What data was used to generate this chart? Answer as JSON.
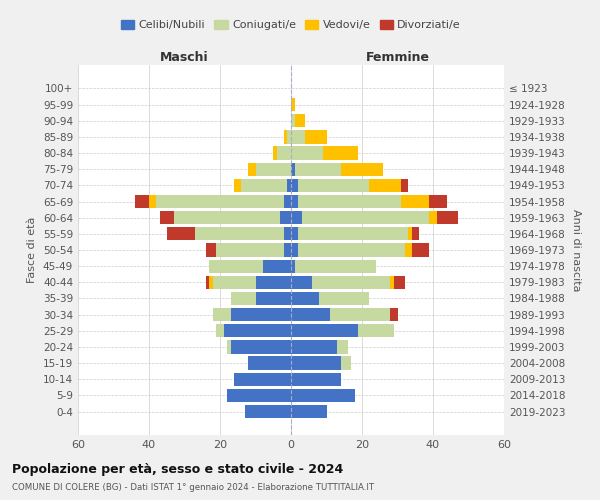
{
  "age_groups": [
    "0-4",
    "5-9",
    "10-14",
    "15-19",
    "20-24",
    "25-29",
    "30-34",
    "35-39",
    "40-44",
    "45-49",
    "50-54",
    "55-59",
    "60-64",
    "65-69",
    "70-74",
    "75-79",
    "80-84",
    "85-89",
    "90-94",
    "95-99",
    "100+"
  ],
  "birth_years": [
    "2019-2023",
    "2014-2018",
    "2009-2013",
    "2004-2008",
    "1999-2003",
    "1994-1998",
    "1989-1993",
    "1984-1988",
    "1979-1983",
    "1974-1978",
    "1969-1973",
    "1964-1968",
    "1959-1963",
    "1954-1958",
    "1949-1953",
    "1944-1948",
    "1939-1943",
    "1934-1938",
    "1929-1933",
    "1924-1928",
    "≤ 1923"
  ],
  "male": {
    "celibi": [
      13,
      18,
      16,
      12,
      17,
      19,
      17,
      10,
      10,
      8,
      2,
      2,
      3,
      2,
      1,
      0,
      0,
      0,
      0,
      0,
      0
    ],
    "coniugati": [
      0,
      0,
      0,
      0,
      1,
      2,
      5,
      7,
      12,
      15,
      19,
      25,
      30,
      36,
      13,
      10,
      4,
      1,
      0,
      0,
      0
    ],
    "vedovi": [
      0,
      0,
      0,
      0,
      0,
      0,
      0,
      0,
      1,
      0,
      0,
      0,
      0,
      2,
      2,
      2,
      1,
      1,
      0,
      0,
      0
    ],
    "divorziati": [
      0,
      0,
      0,
      0,
      0,
      0,
      0,
      0,
      1,
      0,
      3,
      8,
      4,
      4,
      0,
      0,
      0,
      0,
      0,
      0,
      0
    ]
  },
  "female": {
    "nubili": [
      10,
      18,
      14,
      14,
      13,
      19,
      11,
      8,
      6,
      1,
      2,
      2,
      3,
      2,
      2,
      1,
      0,
      0,
      0,
      0,
      0
    ],
    "coniugate": [
      0,
      0,
      0,
      3,
      3,
      10,
      17,
      14,
      22,
      23,
      30,
      31,
      36,
      29,
      20,
      13,
      9,
      4,
      1,
      0,
      0
    ],
    "vedove": [
      0,
      0,
      0,
      0,
      0,
      0,
      0,
      0,
      1,
      0,
      2,
      1,
      2,
      8,
      9,
      12,
      10,
      6,
      3,
      1,
      0
    ],
    "divorziate": [
      0,
      0,
      0,
      0,
      0,
      0,
      2,
      0,
      3,
      0,
      5,
      2,
      6,
      5,
      2,
      0,
      0,
      0,
      0,
      0,
      0
    ]
  },
  "colors": {
    "celibi": "#4472c4",
    "coniugati": "#c5d9a0",
    "vedovi": "#ffc000",
    "divorziati": "#c0392b"
  },
  "xlim": 60,
  "title": "Popolazione per età, sesso e stato civile - 2024",
  "subtitle": "COMUNE DI COLERE (BG) - Dati ISTAT 1° gennaio 2024 - Elaborazione TUTTITALIA.IT",
  "ylabel_left": "Fasce di età",
  "ylabel_right": "Anni di nascita",
  "xlabel_left": "Maschi",
  "xlabel_right": "Femmine",
  "bg_color": "#f0f0f0",
  "plot_bg": "#ffffff"
}
